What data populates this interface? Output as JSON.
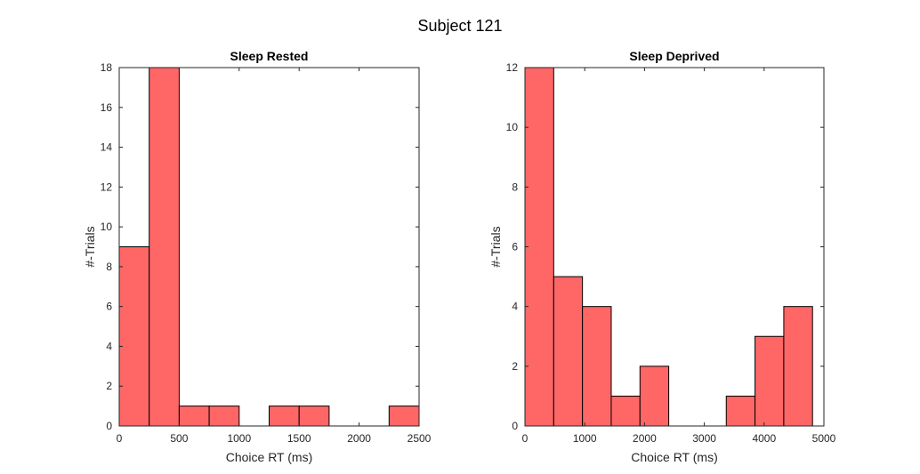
{
  "figure": {
    "suptitle": "Subject 121"
  },
  "colors": {
    "bar_fill": "#ff6666",
    "bar_edge": "#000000",
    "axis": "#262626",
    "background": "#ffffff"
  },
  "chart_data": [
    {
      "type": "bar",
      "title": "Sleep Rested",
      "xlabel": "Choice RT (ms)",
      "ylabel": "#-Trials",
      "xlim": [
        0,
        2500
      ],
      "ylim": [
        0,
        18
      ],
      "xticks": [
        0,
        500,
        1000,
        1500,
        2000,
        2500
      ],
      "yticks": [
        0,
        2,
        4,
        6,
        8,
        10,
        12,
        14,
        16,
        18
      ],
      "bin_edges": [
        0,
        250,
        500,
        750,
        1000,
        1250,
        1500,
        1750,
        2000,
        2250,
        2500
      ],
      "values": [
        9,
        18,
        1,
        1,
        0,
        1,
        1,
        0,
        0,
        1
      ],
      "grid": false,
      "legend": "none"
    },
    {
      "type": "bar",
      "title": "Sleep Deprived",
      "xlabel": "Choice RT (ms)",
      "ylabel": "#-Trials",
      "xlim": [
        0,
        5000
      ],
      "ylim": [
        0,
        12
      ],
      "xticks": [
        0,
        1000,
        2000,
        3000,
        4000,
        5000
      ],
      "yticks": [
        0,
        2,
        4,
        6,
        8,
        10,
        12
      ],
      "bin_edges": [
        0,
        481,
        962,
        1443,
        1924,
        2405,
        2886,
        3367,
        3848,
        4329,
        4810
      ],
      "values": [
        12,
        5,
        4,
        1,
        2,
        0,
        0,
        1,
        3,
        4
      ],
      "grid": false,
      "legend": "none"
    }
  ]
}
